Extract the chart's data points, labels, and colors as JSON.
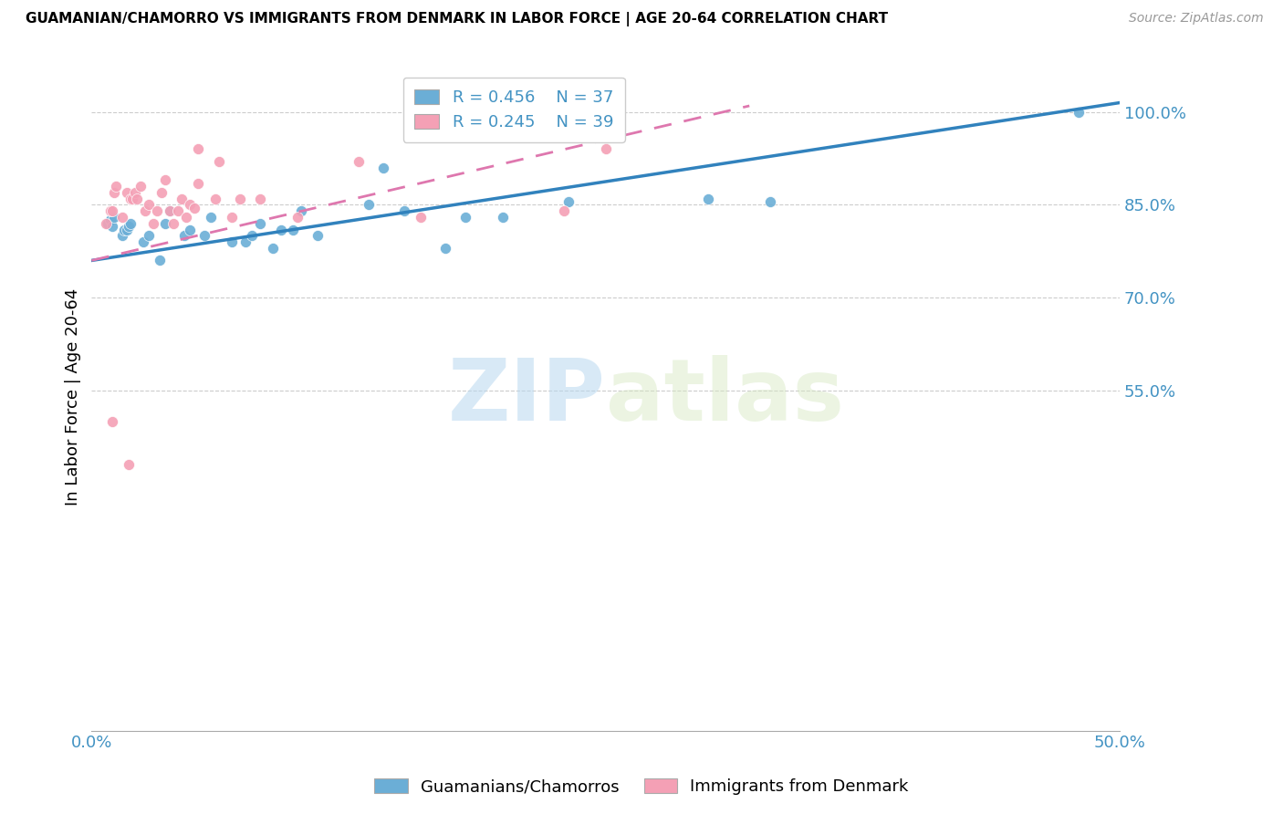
{
  "title": "GUAMANIAN/CHAMORRO VS IMMIGRANTS FROM DENMARK IN LABOR FORCE | AGE 20-64 CORRELATION CHART",
  "source": "Source: ZipAtlas.com",
  "ylabel": "In Labor Force | Age 20-64",
  "xlim": [
    0.0,
    0.5
  ],
  "ylim": [
    0.0,
    1.08
  ],
  "yticks": [
    0.55,
    0.7,
    0.85,
    1.0
  ],
  "ytick_labels": [
    "55.0%",
    "70.0%",
    "85.0%",
    "100.0%"
  ],
  "xticks": [
    0.0,
    0.1,
    0.2,
    0.3,
    0.4,
    0.5
  ],
  "xtick_labels": [
    "0.0%",
    "",
    "",
    "",
    "",
    "50.0%"
  ],
  "blue_color": "#6baed6",
  "pink_color": "#f4a0b5",
  "blue_line_color": "#3182bd",
  "pink_line_color": "#de77ae",
  "axis_color": "#4393c3",
  "grid_color": "#cccccc",
  "watermark_zip": "ZIP",
  "watermark_atlas": "atlas",
  "legend_label_blue": "Guamanians/Chamorros",
  "legend_label_pink": "Immigrants from Denmark",
  "blue_scatter_x": [
    0.008,
    0.009,
    0.01,
    0.011,
    0.015,
    0.016,
    0.017,
    0.018,
    0.019,
    0.025,
    0.028,
    0.033,
    0.036,
    0.038,
    0.045,
    0.048,
    0.055,
    0.058,
    0.068,
    0.075,
    0.078,
    0.082,
    0.088,
    0.092,
    0.098,
    0.102,
    0.11,
    0.135,
    0.142,
    0.152,
    0.172,
    0.182,
    0.2,
    0.232,
    0.3,
    0.33,
    0.48
  ],
  "blue_scatter_y": [
    0.82,
    0.825,
    0.815,
    0.83,
    0.8,
    0.81,
    0.81,
    0.815,
    0.82,
    0.79,
    0.8,
    0.76,
    0.82,
    0.84,
    0.8,
    0.81,
    0.8,
    0.83,
    0.79,
    0.79,
    0.8,
    0.82,
    0.78,
    0.81,
    0.81,
    0.84,
    0.8,
    0.85,
    0.91,
    0.84,
    0.78,
    0.83,
    0.83,
    0.855,
    0.86,
    0.855,
    1.0
  ],
  "pink_scatter_x": [
    0.007,
    0.009,
    0.01,
    0.011,
    0.012,
    0.015,
    0.017,
    0.019,
    0.02,
    0.021,
    0.022,
    0.024,
    0.026,
    0.028,
    0.03,
    0.032,
    0.034,
    0.036,
    0.038,
    0.04,
    0.042,
    0.044,
    0.046,
    0.048,
    0.05,
    0.052,
    0.06,
    0.068,
    0.072,
    0.082,
    0.1,
    0.13,
    0.16,
    0.23,
    0.25,
    0.01,
    0.018,
    0.052,
    0.062
  ],
  "pink_scatter_y": [
    0.82,
    0.84,
    0.84,
    0.87,
    0.88,
    0.83,
    0.87,
    0.86,
    0.86,
    0.87,
    0.86,
    0.88,
    0.84,
    0.85,
    0.82,
    0.84,
    0.87,
    0.89,
    0.84,
    0.82,
    0.84,
    0.86,
    0.83,
    0.85,
    0.845,
    0.885,
    0.86,
    0.83,
    0.86,
    0.86,
    0.83,
    0.92,
    0.83,
    0.84,
    0.94,
    0.5,
    0.43,
    0.94,
    0.92
  ],
  "blue_line_x0": 0.0,
  "blue_line_x1": 0.5,
  "blue_line_y0": 0.76,
  "blue_line_y1": 1.015,
  "pink_line_x0": 0.0,
  "pink_line_x1": 0.32,
  "pink_line_y0": 0.76,
  "pink_line_y1": 1.01
}
